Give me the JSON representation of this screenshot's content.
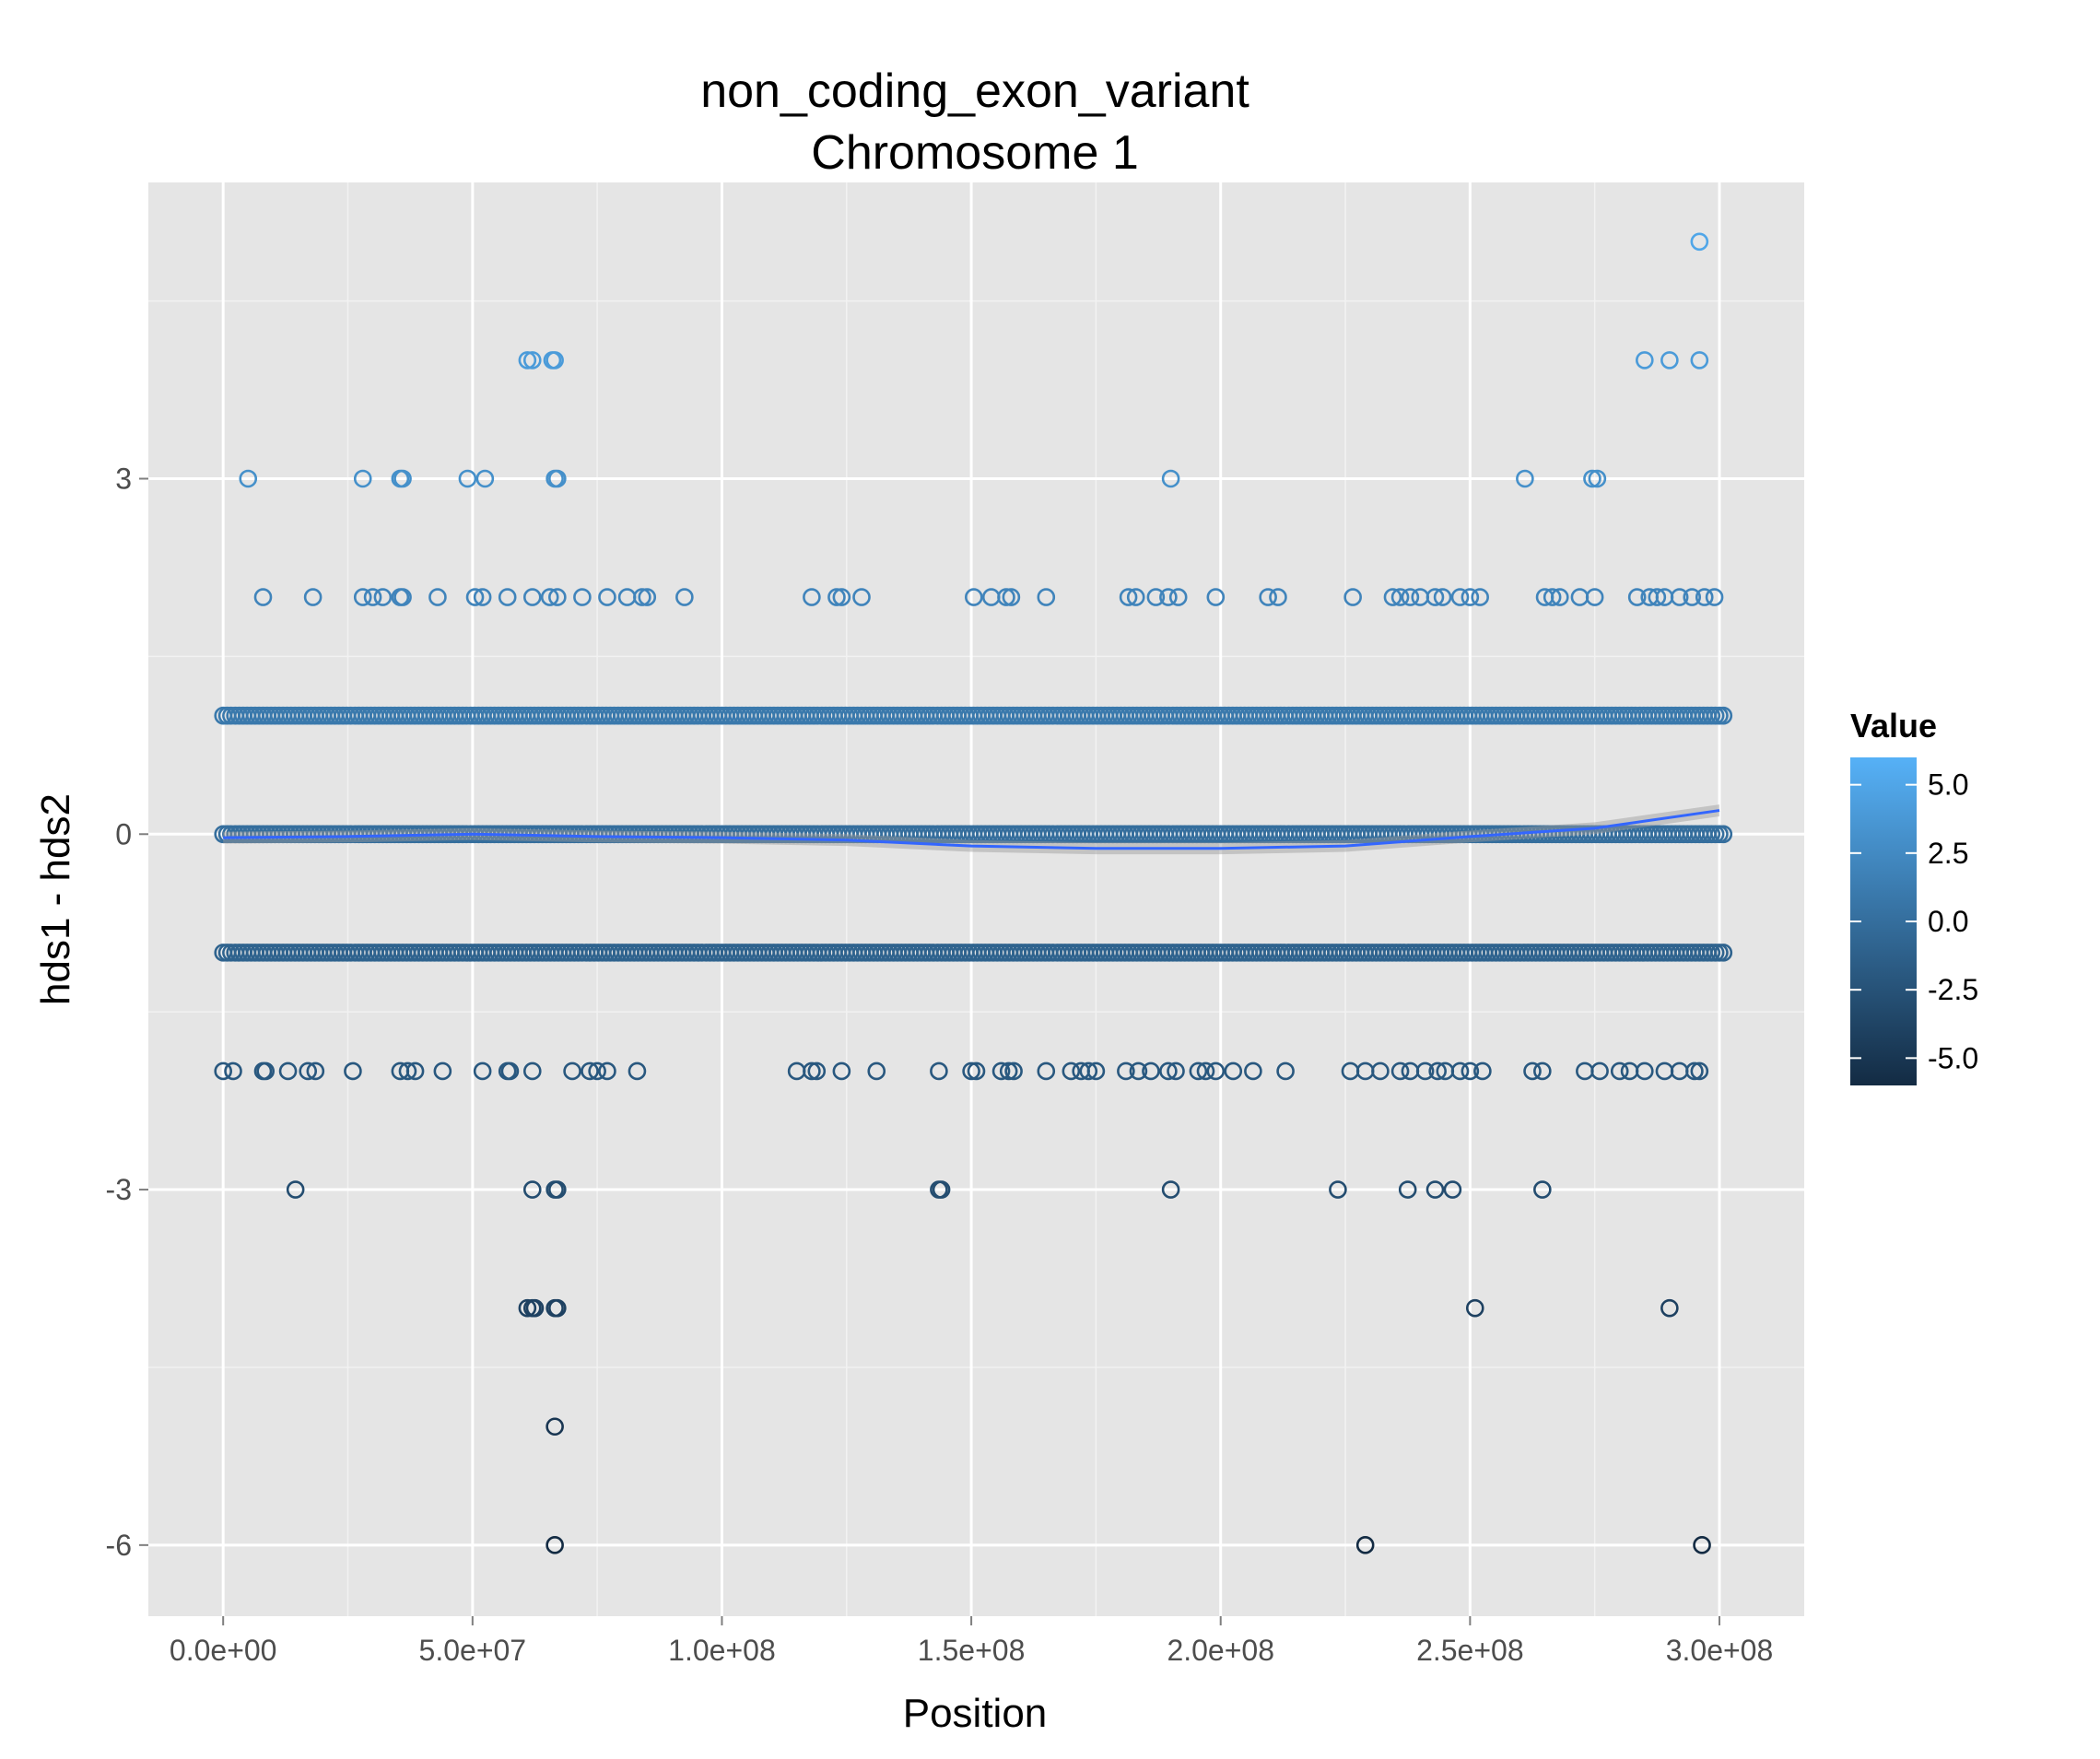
{
  "chart_data": {
    "type": "scatter",
    "title": "non_coding_exon_variant",
    "subtitle": "Chromosome 1",
    "xlabel": "Position",
    "ylabel": "hds1 - hds2",
    "xlim": [
      -15000000.0,
      317000000.0
    ],
    "ylim": [
      -6.6,
      5.5
    ],
    "x_ticks": [
      0,
      50000000,
      100000000,
      150000000,
      200000000,
      250000000,
      300000000
    ],
    "x_tick_labels": [
      "0.0e+00",
      "5.0e+07",
      "1.0e+08",
      "1.5e+08",
      "2.0e+08",
      "2.5e+08",
      "3.0e+08"
    ],
    "y_ticks": [
      -6,
      -3,
      0,
      3
    ],
    "y_tick_labels": [
      "-6",
      "-3",
      "0",
      "3"
    ],
    "grid": true,
    "legend": {
      "title": "Value",
      "placement": "right",
      "range": [
        -6,
        6
      ],
      "ticks": [
        5,
        2.5,
        0,
        -2.5,
        -5
      ],
      "tick_labels": [
        "5.0",
        "2.5",
        "0.0",
        "-2.5",
        "-5.0"
      ],
      "low_color": "#132B43",
      "high_color": "#56B1F7"
    },
    "smooth_color": "#3366FF",
    "smooth_line": [
      [
        0,
        -0.03
      ],
      [
        25000000,
        -0.02
      ],
      [
        50000000,
        0
      ],
      [
        75000000,
        -0.02
      ],
      [
        100000000,
        -0.03
      ],
      [
        125000000,
        -0.05
      ],
      [
        150000000,
        -0.1
      ],
      [
        175000000,
        -0.12
      ],
      [
        200000000,
        -0.12
      ],
      [
        225000000,
        -0.1
      ],
      [
        250000000,
        -0.02
      ],
      [
        275000000,
        0.05
      ],
      [
        300000000,
        0.2
      ]
    ],
    "dense_bands": [
      {
        "y": 1,
        "x_range": [
          0,
          301000000
        ]
      },
      {
        "y": 0,
        "x_range": [
          0,
          301000000
        ]
      },
      {
        "y": -1,
        "x_range": [
          0,
          301000000
        ]
      }
    ],
    "points": [
      {
        "y": 5,
        "x": [
          296000000
        ]
      },
      {
        "y": 4,
        "x": [
          61000000,
          62000000,
          66000000,
          66500000,
          285000000,
          290000000,
          296000000
        ]
      },
      {
        "y": 3,
        "x": [
          5000000,
          28000000,
          35500000,
          36000000,
          49000000,
          52500000,
          66500000,
          67000000,
          190000000,
          261000000,
          274500000,
          275500000
        ]
      },
      {
        "y": 2,
        "x": [
          8000000,
          18000000,
          28000000,
          30000000,
          32000000,
          35500000,
          36000000,
          43000000,
          50500000,
          52000000,
          57000000,
          62000000,
          65500000,
          67000000,
          72000000,
          77000000,
          81000000,
          84000000,
          85000000,
          92500000,
          118000000,
          123000000,
          124000000,
          128000000,
          150500000,
          154000000,
          157000000,
          158000000,
          165000000,
          181500000,
          183000000,
          187000000,
          189500000,
          191500000,
          199000000,
          209500000,
          211500000,
          226500000,
          234500000,
          236000000,
          238000000,
          240000000,
          243000000,
          244500000,
          248000000,
          250000000,
          252000000,
          265000000,
          266500000,
          268000000,
          272000000,
          275000000,
          283500000,
          286000000,
          287500000,
          289000000,
          292000000,
          294500000,
          297000000,
          299000000
        ]
      },
      {
        "y": -2,
        "x": [
          0,
          2000000,
          8000000,
          8500000,
          13000000,
          17000000,
          18500000,
          26000000,
          35500000,
          37000000,
          38500000,
          44000000,
          52000000,
          57000000,
          57500000,
          62000000,
          70000000,
          73500000,
          75000000,
          77000000,
          83000000,
          115000000,
          118000000,
          119000000,
          124000000,
          131000000,
          143500000,
          150000000,
          151000000,
          156000000,
          157500000,
          158500000,
          165000000,
          170000000,
          172000000,
          173500000,
          175000000,
          181000000,
          183500000,
          186000000,
          189500000,
          191000000,
          195500000,
          197000000,
          199000000,
          202500000,
          206500000,
          213000000,
          226000000,
          229000000,
          232000000,
          236000000,
          238000000,
          241000000,
          243500000,
          245000000,
          248000000,
          250000000,
          252500000,
          262500000,
          264500000,
          273000000,
          276000000,
          280000000,
          282000000,
          285000000,
          289000000,
          292000000,
          295000000,
          296000000
        ]
      },
      {
        "y": -3,
        "x": [
          14500000,
          62000000,
          66500000,
          67000000,
          143500000,
          144000000,
          190000000,
          223500000,
          237500000,
          243000000,
          246500000,
          264500000
        ]
      },
      {
        "y": -4,
        "x": [
          61000000,
          62000000,
          62500000,
          66500000,
          67000000,
          251000000,
          290000000
        ]
      },
      {
        "y": -5,
        "x": [
          66500000
        ]
      },
      {
        "y": -6,
        "x": [
          66500000,
          229000000,
          296500000
        ]
      }
    ]
  }
}
